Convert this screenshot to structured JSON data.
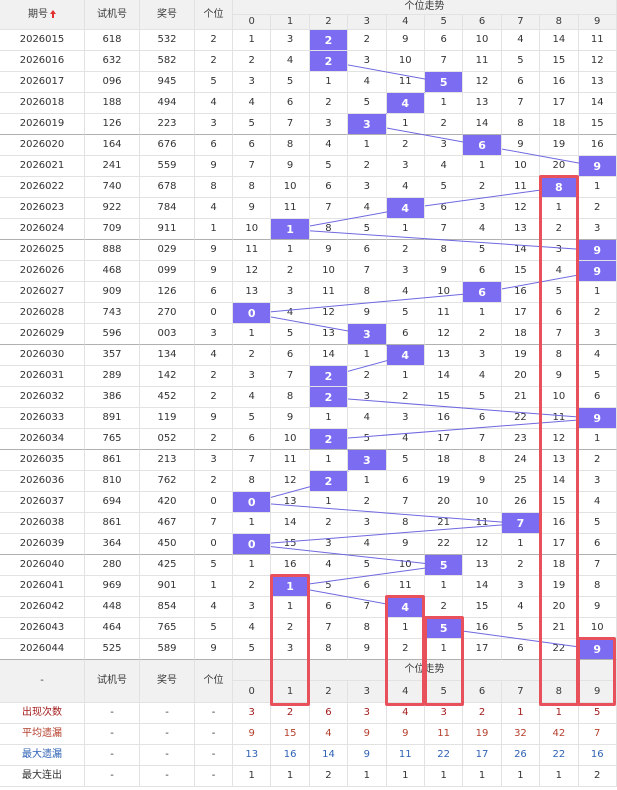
{
  "chart_data": {
    "type": "table",
    "header": {
      "issue": "期号",
      "sort_icon": "sort-up-icon",
      "trial": "试机号",
      "draw": "奖号",
      "units": "个位",
      "trend": "个位走势",
      "digits": [
        "0",
        "1",
        "2",
        "3",
        "4",
        "5",
        "6",
        "7",
        "8",
        "9"
      ]
    },
    "rows": [
      {
        "issue": "2026015",
        "trial": "618",
        "draw": "532",
        "units": "2",
        "cells": [
          "1",
          "3",
          "2",
          "2",
          "9",
          "6",
          "10",
          "4",
          "14",
          "11"
        ]
      },
      {
        "issue": "2026016",
        "trial": "632",
        "draw": "582",
        "units": "2",
        "cells": [
          "2",
          "4",
          "2",
          "3",
          "10",
          "7",
          "11",
          "5",
          "15",
          "12"
        ]
      },
      {
        "issue": "2026017",
        "trial": "096",
        "draw": "945",
        "units": "5",
        "cells": [
          "3",
          "5",
          "1",
          "4",
          "11",
          "5",
          "12",
          "6",
          "16",
          "13"
        ]
      },
      {
        "issue": "2026018",
        "trial": "188",
        "draw": "494",
        "units": "4",
        "cells": [
          "4",
          "6",
          "2",
          "5",
          "4",
          "1",
          "13",
          "7",
          "17",
          "14"
        ]
      },
      {
        "issue": "2026019",
        "trial": "126",
        "draw": "223",
        "units": "3",
        "cells": [
          "5",
          "7",
          "3",
          "3",
          "1",
          "2",
          "14",
          "8",
          "18",
          "15"
        ]
      },
      {
        "issue": "2026020",
        "trial": "164",
        "draw": "676",
        "units": "6",
        "cells": [
          "6",
          "8",
          "4",
          "1",
          "2",
          "3",
          "6",
          "9",
          "19",
          "16"
        ]
      },
      {
        "issue": "2026021",
        "trial": "241",
        "draw": "559",
        "units": "9",
        "cells": [
          "7",
          "9",
          "5",
          "2",
          "3",
          "4",
          "1",
          "10",
          "20",
          "9"
        ]
      },
      {
        "issue": "2026022",
        "trial": "740",
        "draw": "678",
        "units": "8",
        "cells": [
          "8",
          "10",
          "6",
          "3",
          "4",
          "5",
          "2",
          "11",
          "8",
          "1"
        ]
      },
      {
        "issue": "2026023",
        "trial": "922",
        "draw": "784",
        "units": "4",
        "cells": [
          "9",
          "11",
          "7",
          "4",
          "4",
          "6",
          "3",
          "12",
          "1",
          "2"
        ]
      },
      {
        "issue": "2026024",
        "trial": "709",
        "draw": "911",
        "units": "1",
        "cells": [
          "10",
          "1",
          "8",
          "5",
          "1",
          "7",
          "4",
          "13",
          "2",
          "3"
        ]
      },
      {
        "issue": "2026025",
        "trial": "888",
        "draw": "029",
        "units": "9",
        "cells": [
          "11",
          "1",
          "9",
          "6",
          "2",
          "8",
          "5",
          "14",
          "3",
          "9"
        ]
      },
      {
        "issue": "2026026",
        "trial": "468",
        "draw": "099",
        "units": "9",
        "cells": [
          "12",
          "2",
          "10",
          "7",
          "3",
          "9",
          "6",
          "15",
          "4",
          "9"
        ]
      },
      {
        "issue": "2026027",
        "trial": "909",
        "draw": "126",
        "units": "6",
        "cells": [
          "13",
          "3",
          "11",
          "8",
          "4",
          "10",
          "6",
          "16",
          "5",
          "1"
        ]
      },
      {
        "issue": "2026028",
        "trial": "743",
        "draw": "270",
        "units": "0",
        "cells": [
          "0",
          "4",
          "12",
          "9",
          "5",
          "11",
          "1",
          "17",
          "6",
          "2"
        ]
      },
      {
        "issue": "2026029",
        "trial": "596",
        "draw": "003",
        "units": "3",
        "cells": [
          "1",
          "5",
          "13",
          "3",
          "6",
          "12",
          "2",
          "18",
          "7",
          "3"
        ]
      },
      {
        "issue": "2026030",
        "trial": "357",
        "draw": "134",
        "units": "4",
        "cells": [
          "2",
          "6",
          "14",
          "1",
          "4",
          "13",
          "3",
          "19",
          "8",
          "4"
        ]
      },
      {
        "issue": "2026031",
        "trial": "289",
        "draw": "142",
        "units": "2",
        "cells": [
          "3",
          "7",
          "2",
          "2",
          "1",
          "14",
          "4",
          "20",
          "9",
          "5"
        ]
      },
      {
        "issue": "2026032",
        "trial": "386",
        "draw": "452",
        "units": "2",
        "cells": [
          "4",
          "8",
          "2",
          "3",
          "2",
          "15",
          "5",
          "21",
          "10",
          "6"
        ]
      },
      {
        "issue": "2026033",
        "trial": "891",
        "draw": "119",
        "units": "9",
        "cells": [
          "5",
          "9",
          "1",
          "4",
          "3",
          "16",
          "6",
          "22",
          "11",
          "9"
        ]
      },
      {
        "issue": "2026034",
        "trial": "765",
        "draw": "052",
        "units": "2",
        "cells": [
          "6",
          "10",
          "2",
          "5",
          "4",
          "17",
          "7",
          "23",
          "12",
          "1"
        ]
      },
      {
        "issue": "2026035",
        "trial": "861",
        "draw": "213",
        "units": "3",
        "cells": [
          "7",
          "11",
          "1",
          "3",
          "5",
          "18",
          "8",
          "24",
          "13",
          "2"
        ]
      },
      {
        "issue": "2026036",
        "trial": "810",
        "draw": "762",
        "units": "2",
        "cells": [
          "8",
          "12",
          "2",
          "1",
          "6",
          "19",
          "9",
          "25",
          "14",
          "3"
        ]
      },
      {
        "issue": "2026037",
        "trial": "694",
        "draw": "420",
        "units": "0",
        "cells": [
          "0",
          "13",
          "1",
          "2",
          "7",
          "20",
          "10",
          "26",
          "15",
          "4"
        ]
      },
      {
        "issue": "2026038",
        "trial": "861",
        "draw": "467",
        "units": "7",
        "cells": [
          "1",
          "14",
          "2",
          "3",
          "8",
          "21",
          "11",
          "7",
          "16",
          "5"
        ]
      },
      {
        "issue": "2026039",
        "trial": "364",
        "draw": "450",
        "units": "0",
        "cells": [
          "0",
          "15",
          "3",
          "4",
          "9",
          "22",
          "12",
          "1",
          "17",
          "6"
        ]
      },
      {
        "issue": "2026040",
        "trial": "280",
        "draw": "425",
        "units": "5",
        "cells": [
          "1",
          "16",
          "4",
          "5",
          "10",
          "5",
          "13",
          "2",
          "18",
          "7"
        ]
      },
      {
        "issue": "2026041",
        "trial": "969",
        "draw": "901",
        "units": "1",
        "cells": [
          "2",
          "1",
          "5",
          "6",
          "11",
          "1",
          "14",
          "3",
          "19",
          "8"
        ]
      },
      {
        "issue": "2026042",
        "trial": "448",
        "draw": "854",
        "units": "4",
        "cells": [
          "3",
          "1",
          "6",
          "7",
          "4",
          "2",
          "15",
          "4",
          "20",
          "9"
        ]
      },
      {
        "issue": "2026043",
        "trial": "464",
        "draw": "765",
        "units": "5",
        "cells": [
          "4",
          "2",
          "7",
          "8",
          "1",
          "5",
          "16",
          "5",
          "21",
          "10"
        ]
      },
      {
        "issue": "2026044",
        "trial": "525",
        "draw": "589",
        "units": "9",
        "cells": [
          "5",
          "3",
          "8",
          "9",
          "2",
          "1",
          "17",
          "6",
          "22",
          "9"
        ]
      }
    ],
    "footer": {
      "issue": "-",
      "trial": "试机号",
      "draw": "奖号",
      "units": "个位",
      "trend": "个位走势",
      "digits": [
        "0",
        "1",
        "2",
        "3",
        "4",
        "5",
        "6",
        "7",
        "8",
        "9"
      ]
    },
    "stats": [
      {
        "label": "出现次数",
        "trial": "-",
        "draw": "-",
        "units": "-",
        "values": [
          "3",
          "2",
          "6",
          "3",
          "4",
          "3",
          "2",
          "1",
          "1",
          "5"
        ],
        "color": "#a41c1c"
      },
      {
        "label": "平均遗漏",
        "trial": "-",
        "draw": "-",
        "units": "-",
        "values": [
          "9",
          "15",
          "4",
          "9",
          "9",
          "11",
          "19",
          "32",
          "42",
          "7"
        ],
        "color": "#b5402e"
      },
      {
        "label": "最大遗漏",
        "trial": "-",
        "draw": "-",
        "units": "-",
        "values": [
          "13",
          "16",
          "14",
          "9",
          "11",
          "22",
          "17",
          "26",
          "22",
          "16"
        ],
        "color": "#2f62b5"
      },
      {
        "label": "最大连出",
        "trial": "-",
        "draw": "-",
        "units": "-",
        "values": [
          "1",
          "1",
          "2",
          "1",
          "1",
          "1",
          "1",
          "1",
          "1",
          "2"
        ],
        "color": "#333333"
      }
    ]
  },
  "colors": {
    "highlight": "#7b6cf2",
    "trend_line": "#6f68e0",
    "sort_icon": "#e0302f",
    "annotation": "#e8505b",
    "header_bg": "#f1f1f1"
  }
}
